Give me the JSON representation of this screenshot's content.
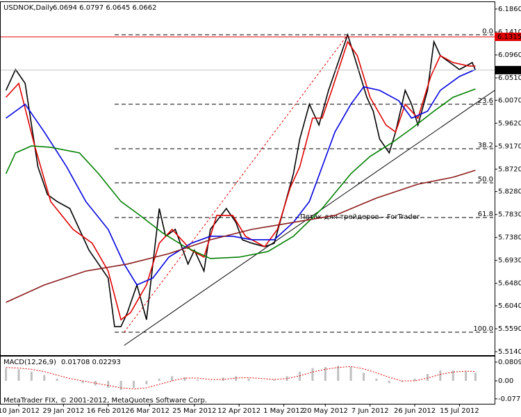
{
  "chart_data": [
    {
      "type": "line",
      "title": "USDNOK,Daily",
      "subtitle": "6.0694 6.0797 6.0645 6.0662",
      "xlim": [
        0,
        154
      ],
      "ylim": [
        5.514,
        6.186
      ],
      "xticks": [
        {
          "value": 5,
          "label": "10 Jan 2012"
        },
        {
          "value": 19,
          "label": "29 Jan 2012"
        },
        {
          "value": 33,
          "label": "16 Feb 2012"
        },
        {
          "value": 46,
          "label": "6 Mar 2012"
        },
        {
          "value": 60,
          "label": "25 Mar 2012"
        },
        {
          "value": 74,
          "label": "12 Apr 2012"
        },
        {
          "value": 88,
          "label": "1 May 2012"
        },
        {
          "value": 101,
          "label": "20 May 2012"
        },
        {
          "value": 115,
          "label": "7 Jun 2012"
        },
        {
          "value": 129,
          "label": "26 Jun 2012"
        },
        {
          "value": 143,
          "label": "15 Jul 2012"
        }
      ],
      "yticks": [
        {
          "value": 6.186,
          "label": "6.1860"
        },
        {
          "value": 6.141,
          "label": "6.1410"
        },
        {
          "value": 6.096,
          "label": "6.0960"
        },
        {
          "value": 6.051,
          "label": "6.0510"
        },
        {
          "value": 6.007,
          "label": "6.0070"
        },
        {
          "value": 5.962,
          "label": "5.9620"
        },
        {
          "value": 5.917,
          "label": "5.9170"
        },
        {
          "value": 5.872,
          "label": "5.8720"
        },
        {
          "value": 5.828,
          "label": "5.8280"
        },
        {
          "value": 5.783,
          "label": "5.7830"
        },
        {
          "value": 5.738,
          "label": "5.7380"
        },
        {
          "value": 5.693,
          "label": "5.6930"
        },
        {
          "value": 5.648,
          "label": "5.6480"
        },
        {
          "value": 5.604,
          "label": "5.6040"
        },
        {
          "value": 5.559,
          "label": "5.5590"
        },
        {
          "value": 5.514,
          "label": "5.5140"
        }
      ],
      "series": [
        {
          "color": "#000000",
          "x": [
            1,
            4,
            7,
            9,
            11,
            14,
            17,
            21,
            24,
            27,
            30,
            33,
            35,
            37,
            39,
            42,
            45,
            47,
            49,
            51,
            54,
            58,
            60,
            63,
            65,
            70,
            73,
            75,
            78,
            82,
            85,
            88,
            91,
            93,
            96,
            99,
            102,
            105,
            108,
            110,
            112,
            114,
            116,
            118,
            121,
            123,
            126,
            128,
            130,
            133,
            135,
            137,
            140,
            143,
            147,
            148
          ],
          "values": [
            6.0265,
            6.0674,
            6.0402,
            5.9584,
            5.8766,
            5.8221,
            5.8085,
            5.7948,
            5.7539,
            5.713,
            5.6858,
            5.6585,
            5.5631,
            5.5631,
            5.5904,
            5.6449,
            5.5767,
            5.6858,
            5.7948,
            5.7403,
            5.7539,
            5.6858,
            5.713,
            5.6721,
            5.7539,
            5.7948,
            5.7676,
            5.7335,
            5.7267,
            5.7199,
            5.7267,
            5.7948,
            5.863,
            5.9311,
            5.9993,
            5.9584,
            6.0265,
            6.081,
            6.1356,
            6.0947,
            6.0538,
            6.0129,
            5.9856,
            5.9311,
            5.9039,
            5.9448,
            6.0265,
            5.9993,
            5.9584,
            6.0265,
            6.1219,
            6.0947,
            6.081,
            6.0674,
            6.081,
            6.0662
          ]
        },
        {
          "color": "#e00000",
          "x": [
            1,
            5,
            10,
            15,
            22,
            28,
            33,
            37,
            40,
            45,
            49,
            53,
            59,
            63,
            67,
            72,
            76,
            82,
            86,
            90,
            93,
            97,
            100,
            103,
            108,
            111,
            115,
            120,
            123,
            126,
            130,
            134,
            137,
            141,
            146,
            148
          ],
          "values": [
            6.0129,
            6.0402,
            5.9175,
            5.8085,
            5.7539,
            5.7267,
            5.6721,
            5.5767,
            5.5904,
            5.6449,
            5.7267,
            5.7539,
            5.713,
            5.6994,
            5.7812,
            5.7812,
            5.7403,
            5.7199,
            5.7539,
            5.8357,
            5.8766,
            5.972,
            5.972,
            6.0265,
            6.1219,
            6.0947,
            6.0129,
            5.9584,
            5.9448,
            5.9993,
            5.972,
            6.0538,
            6.0947,
            6.081,
            6.0742,
            6.0742
          ]
        },
        {
          "color": "#0000e0",
          "x": [
            1,
            7,
            13,
            20,
            26,
            33,
            38,
            42,
            47,
            52,
            59,
            65,
            72,
            78,
            85,
            91,
            96,
            100,
            104,
            109,
            113,
            118,
            124,
            128,
            133,
            137,
            143,
            148
          ],
          "values": [
            5.972,
            5.9993,
            5.9448,
            5.8766,
            5.8085,
            5.7539,
            5.6858,
            5.6449,
            5.6585,
            5.6994,
            5.7267,
            5.7403,
            5.7403,
            5.7335,
            5.7335,
            5.7676,
            5.8085,
            5.8766,
            5.9448,
            5.9993,
            6.0334,
            6.0265,
            6.0061,
            5.972,
            5.9856,
            6.0265,
            6.0538,
            6.0674
          ]
        },
        {
          "color": "#008000",
          "x": [
            1,
            4,
            9,
            15,
            24,
            30,
            37,
            43,
            50,
            57,
            65,
            74,
            83,
            91,
            100,
            109,
            115,
            122,
            128,
            135,
            141,
            148
          ],
          "values": [
            5.863,
            5.9039,
            5.9175,
            5.9148,
            5.9039,
            5.863,
            5.8085,
            5.7812,
            5.7471,
            5.7199,
            5.6967,
            5.6994,
            5.7103,
            5.7403,
            5.7948,
            5.863,
            5.897,
            5.9243,
            5.9516,
            5.9856,
            6.0129,
            6.0293
          ]
        },
        {
          "color": "#8b1a1a",
          "x": [
            1,
            13,
            26,
            39,
            52,
            65,
            78,
            91,
            104,
            117,
            130,
            141,
            148
          ],
          "values": [
            5.6108,
            5.6449,
            5.6721,
            5.6858,
            5.7062,
            5.7335,
            5.7539,
            5.7676,
            5.7812,
            5.8153,
            5.8425,
            5.8561,
            5.8698
          ]
        }
      ],
      "levels": [
        {
          "value": 6.1356,
          "label": "0.0"
        },
        {
          "value": 5.9993,
          "label": "23.6"
        },
        {
          "value": 5.9121,
          "label": "38.2"
        },
        {
          "value": 5.8453,
          "label": "50.0"
        },
        {
          "value": 5.7771,
          "label": "61.8"
        },
        {
          "value": 5.5522,
          "label": "100.0"
        }
      ],
      "markers": [
        {
          "value": 6.1315,
          "label": "6.1315",
          "color": "#e00000"
        },
        {
          "value": 6.0662,
          "label": "6.0662",
          "color": "#000000"
        }
      ],
      "trendlines": [
        {
          "x": [
            38,
            154
          ],
          "values": [
            5.5263,
            6.0265
          ],
          "color": "#000000",
          "dash": false
        },
        {
          "x": [
            38,
            108
          ],
          "values": [
            5.5522,
            6.1356
          ],
          "color": "#e00000",
          "dash": true
        }
      ],
      "annotation": "Пятак для трейдеров – ForTrader"
    },
    {
      "type": "bar",
      "title": "MACD(12,26,9)",
      "subtitle": "0.01708 0.02293",
      "xlim": [
        0,
        154
      ],
      "ylim": [
        -0.096,
        0.105
      ],
      "yticks": [
        0.08094,
        {
          "value": 0,
          "label": "0.00"
        },
        -0.0775
      ],
      "series": [
        {
          "type": "bar",
          "color": "#c0c0c0",
          "x": [
            1,
            5,
            9,
            13,
            17,
            21,
            25,
            29,
            33,
            37,
            41,
            45,
            49,
            53,
            57,
            61,
            65,
            69,
            73,
            77,
            81,
            85,
            89,
            93,
            97,
            101,
            105,
            109,
            113,
            117,
            121,
            125,
            129,
            133,
            137,
            141,
            145,
            148
          ],
          "values": [
            0.055,
            0.05,
            0.04,
            0.025,
            0.01,
            0.0,
            -0.01,
            -0.02,
            -0.03,
            -0.04,
            -0.03,
            -0.015,
            0.01,
            0.02,
            0.015,
            0.005,
            0.0,
            0.015,
            0.02,
            0.01,
            0.0,
            0.005,
            0.02,
            0.04,
            0.055,
            0.06,
            0.065,
            0.06,
            0.035,
            0.01,
            -0.01,
            -0.005,
            0.01,
            0.03,
            0.045,
            0.045,
            0.04,
            0.035
          ]
        },
        {
          "type": "line",
          "color": "#e00000",
          "dash": true,
          "x": [
            1,
            5,
            9,
            13,
            17,
            21,
            25,
            29,
            33,
            37,
            41,
            45,
            49,
            53,
            57,
            61,
            65,
            69,
            73,
            77,
            81,
            85,
            89,
            93,
            97,
            101,
            105,
            109,
            113,
            117,
            121,
            125,
            129,
            133,
            137,
            141,
            145,
            148
          ],
          "values": [
            0.058,
            0.055,
            0.05,
            0.04,
            0.025,
            0.01,
            0.0,
            -0.01,
            -0.02,
            -0.03,
            -0.035,
            -0.03,
            -0.015,
            0.0,
            0.012,
            0.012,
            0.006,
            0.006,
            0.012,
            0.014,
            0.01,
            0.006,
            0.01,
            0.022,
            0.038,
            0.05,
            0.058,
            0.062,
            0.052,
            0.035,
            0.015,
            0.0,
            0.0,
            0.012,
            0.028,
            0.038,
            0.042,
            0.04
          ]
        }
      ]
    }
  ],
  "footer": "MetaTrader FIX, © 2001-2012, MetaQuotes Software Corp."
}
